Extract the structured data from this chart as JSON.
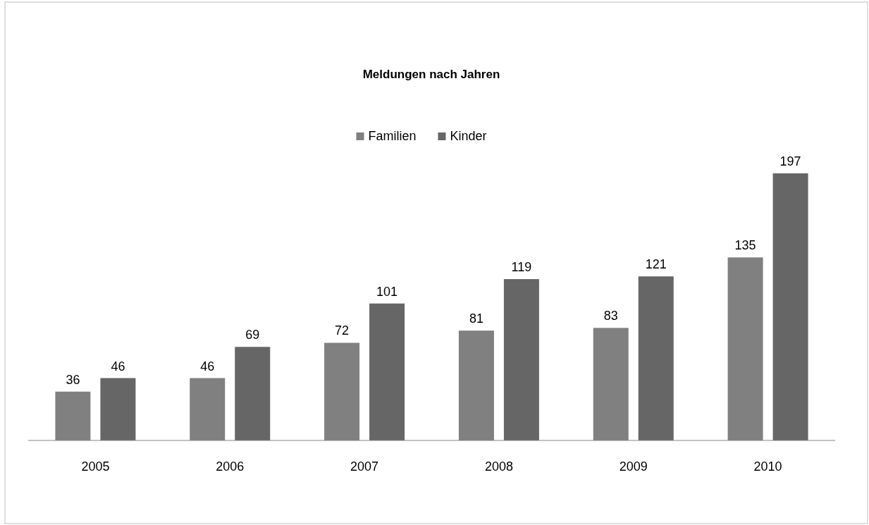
{
  "chart_data": {
    "type": "bar",
    "title": "Meldungen nach Jahren",
    "categories": [
      "2005",
      "2006",
      "2007",
      "2008",
      "2009",
      "2010"
    ],
    "series": [
      {
        "name": "Familien",
        "color": "#808080",
        "values": [
          36,
          46,
          72,
          81,
          83,
          135
        ]
      },
      {
        "name": "Kinder",
        "color": "#666666",
        "values": [
          46,
          69,
          101,
          119,
          121,
          197
        ]
      }
    ],
    "data_labels": true,
    "legend": "top"
  }
}
